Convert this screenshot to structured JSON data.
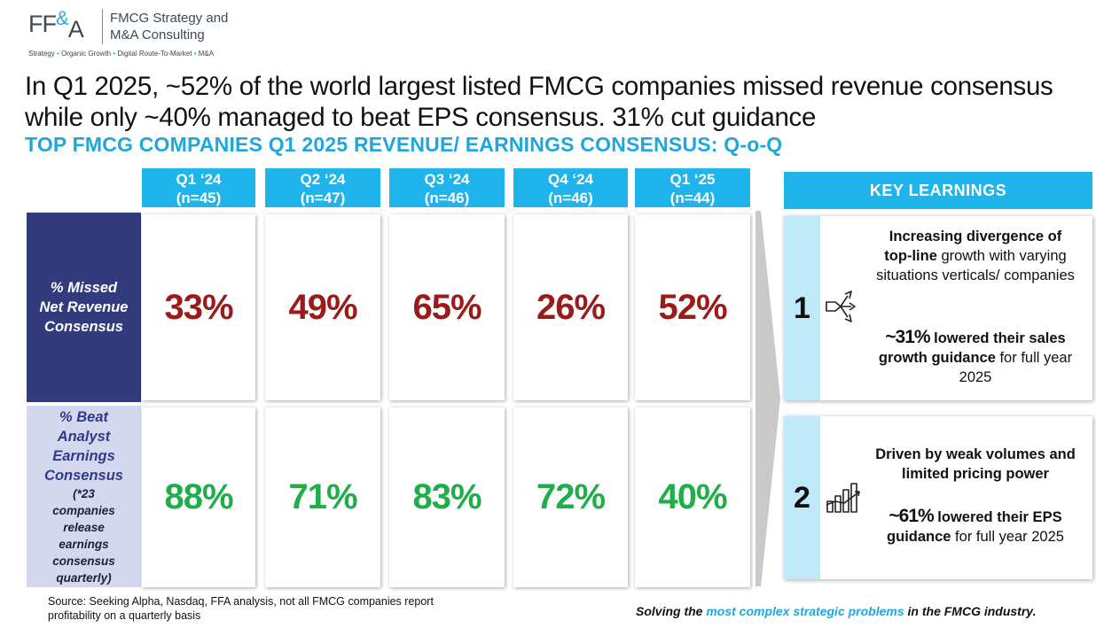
{
  "logo": {
    "mark_left": "FF",
    "mark_amp": "&",
    "mark_right": "A",
    "name_line1": "FMCG Strategy and",
    "name_line2": "M&A Consulting",
    "tag_1": "Strategy",
    "tag_2": "Organic Growth",
    "tag_3": "Digital Route-To-Market",
    "tag_4": "M&A",
    "accent_color": "#2aa9d9"
  },
  "headline": "In Q1 2025, ~52% of the world largest listed FMCG companies missed revenue consensus while only ~40% managed to beat EPS consensus. 31% cut guidance",
  "subhead": "TOP FMCG COMPANIES Q1 2025 REVENUE/ EARNINGS CONSENSUS: Q-o-Q",
  "columns": [
    {
      "quarter": "Q1 ‘24",
      "n": "(n=45)"
    },
    {
      "quarter": "Q2 ‘24",
      "n": "(n=47)"
    },
    {
      "quarter": "Q3 ‘24",
      "n": "(n=46)"
    },
    {
      "quarter": "Q4 ‘24",
      "n": "(n=46)"
    },
    {
      "quarter": "Q1 ‘25",
      "n": "(n=44)"
    }
  ],
  "rows": {
    "missed": {
      "label_1": "% Missed",
      "label_2": "Net Revenue",
      "label_3": "Consensus",
      "values": [
        "33%",
        "49%",
        "65%",
        "26%",
        "52%"
      ]
    },
    "beat": {
      "label_1": "% Beat",
      "label_2": "Analyst",
      "label_3": "Earnings",
      "label_4": "Consensus",
      "note_1": "(*23",
      "note_2": "companies",
      "note_3": "release",
      "note_4": "earnings",
      "note_5": "consensus",
      "note_6": "quarterly)",
      "values": [
        "88%",
        "71%",
        "83%",
        "72%",
        "40%"
      ]
    }
  },
  "key_learnings": {
    "header": "KEY LEARNINGS",
    "item1": {
      "number": "1",
      "icon": "diverging-arrows-icon",
      "p1_bold1": "Increasing divergence of",
      "p1_bold2": "top-line",
      "p1_rest": " growth with varying situations verticals/ companies",
      "p2_big": "~31%",
      "p2_bold1": " lowered their sales",
      "p2_bold2": "growth guidance",
      "p2_rest": " for full year 2025"
    },
    "item2": {
      "number": "2",
      "icon": "bar-chart-growth-icon",
      "p1_bold": "Driven by weak volumes and limited pricing power",
      "p2_big": "~61%",
      "p2_bold1": " lowered their EPS",
      "p2_bold2": "guidance",
      "p2_rest": " for full year 2025"
    }
  },
  "footer": {
    "source": "Source: Seeking Alpha, Nasdaq, FFA analysis, not all FMCG companies report profitability on a quarterly basis",
    "tagline_pre": "Solving the ",
    "tagline_hl": "most complex strategic problems",
    "tagline_post": " in the FMCG industry."
  },
  "colors": {
    "header_blue": "#1fb4ec",
    "missed_red": "#9b1b1b",
    "beat_green": "#1fae4a",
    "row1_navy": "#323b7b",
    "row2_lavender": "#d3d8ef"
  }
}
